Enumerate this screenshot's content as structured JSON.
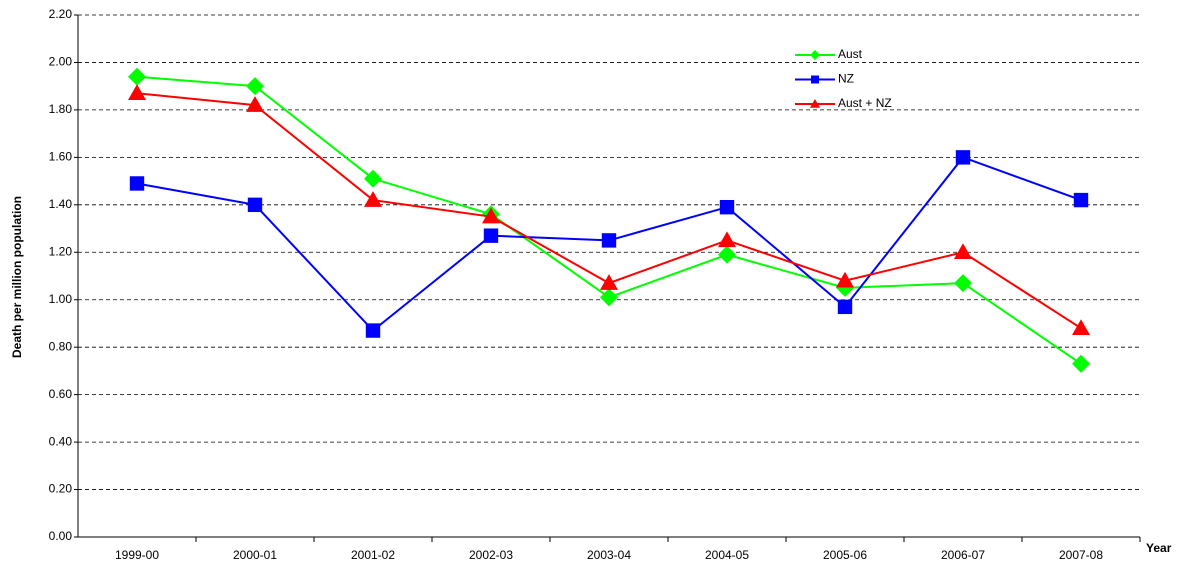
{
  "chart_data": {
    "type": "line",
    "y_label": "Death per million population",
    "x_label": "Year",
    "categories": [
      "1999-00",
      "2000-01",
      "2001-02",
      "2002-03",
      "2003-04",
      "2004-05",
      "2005-06",
      "2006-07",
      "2007-08"
    ],
    "series": [
      {
        "name": "Aust",
        "color": "#00ff00",
        "marker": "diamond",
        "values": [
          1.94,
          1.9,
          1.51,
          1.36,
          1.01,
          1.19,
          1.05,
          1.07,
          0.73
        ]
      },
      {
        "name": "NZ",
        "color": "#0000ff",
        "marker": "square",
        "values": [
          1.49,
          1.4,
          0.87,
          1.27,
          1.25,
          1.39,
          0.97,
          1.6,
          1.42
        ]
      },
      {
        "name": "Aust + NZ",
        "color": "#ff0000",
        "marker": "triangle",
        "values": [
          1.87,
          1.82,
          1.42,
          1.35,
          1.07,
          1.25,
          1.08,
          1.2,
          0.88
        ]
      }
    ],
    "ylim": [
      0,
      2.2
    ],
    "yticks": [
      {
        "value": 0,
        "label": "0.00"
      },
      {
        "value": 0.2,
        "label": "0.20"
      },
      {
        "value": 0.4,
        "label": "0.40"
      },
      {
        "value": 0.6,
        "label": "0.60"
      },
      {
        "value": 0.8,
        "label": "0.80"
      },
      {
        "value": 1.0,
        "label": "1.00"
      },
      {
        "value": 1.2,
        "label": "1.20"
      },
      {
        "value": 1.4,
        "label": "1.40"
      },
      {
        "value": 1.6,
        "label": "1.60"
      },
      {
        "value": 1.8,
        "label": "1.80"
      },
      {
        "value": 2.0,
        "label": "2.00"
      },
      {
        "value": 2.2,
        "label": "2.20"
      }
    ],
    "grid": true
  }
}
